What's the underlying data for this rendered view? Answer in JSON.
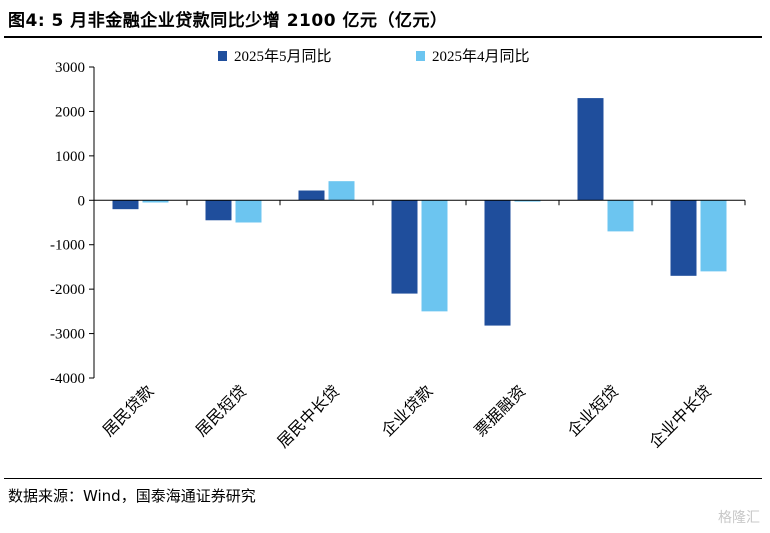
{
  "figure": {
    "title": "图4:  5 月非金融企业贷款同比少增 2100 亿元（亿元）",
    "source": "数据来源：Wind，国泰海通证券研究",
    "watermark": "格隆汇"
  },
  "chart_data": {
    "type": "bar",
    "title": "5 月非金融企业贷款同比少增 2100 亿元（亿元）",
    "categories": [
      "居民贷款",
      "居民短贷",
      "居民中长贷",
      "企业贷款",
      "票据融资",
      "企业短贷",
      "企业中长贷"
    ],
    "series": [
      {
        "name": "2025年5月同比",
        "color": "#1f4e9c",
        "values": [
          -200,
          -450,
          220,
          -2100,
          -2820,
          2300,
          -1700
        ]
      },
      {
        "name": "2025年4月同比",
        "color": "#6cc5f0",
        "values": [
          -50,
          -500,
          430,
          -2500,
          -30,
          -700,
          -1600
        ]
      }
    ],
    "ylim": [
      -4000,
      3000
    ],
    "yticks": [
      3000,
      2000,
      1000,
      0,
      -1000,
      -2000,
      -3000,
      -4000
    ],
    "xlabel": "",
    "ylabel": "",
    "legend_position": "top",
    "grid": false
  }
}
